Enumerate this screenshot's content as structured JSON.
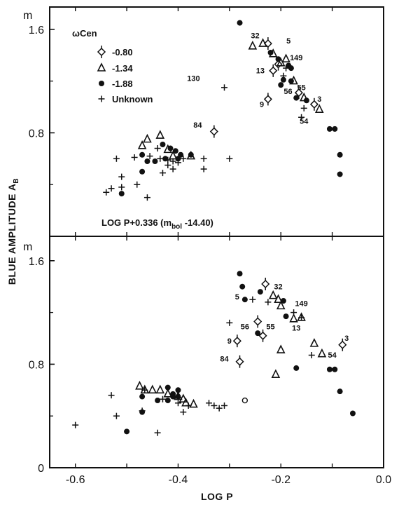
{
  "chart_data": [
    {
      "type": "scatter",
      "panel": "top",
      "x_ticks": [],
      "y_ticks": [
        "1.6",
        "0.8"
      ],
      "y_unit": "m",
      "ylim": [
        0,
        1.95
      ],
      "xlim": [
        -0.65,
        0.0
      ],
      "legend": {
        "title": "ωCen",
        "position": "top-left",
        "items": [
          {
            "label": "-0.80",
            "symbol": "diamond"
          },
          {
            "label": "-1.34",
            "symbol": "triangle"
          },
          {
            "label": "-1.88",
            "symbol": "dot"
          },
          {
            "label": "Unknown",
            "symbol": "plus"
          }
        ]
      },
      "annotation": "LOG P+0.336 (m",
      "annotation_sub": "bol",
      "annotation_tail": " -14.40)",
      "series": [
        {
          "name": "-0.80",
          "points": [
            [
              -0.225,
              1.49
            ],
            [
              -0.205,
              1.33
            ],
            [
              -0.215,
              1.28
            ],
            [
              -0.225,
              1.06
            ],
            [
              -0.165,
              1.11
            ],
            [
              -0.135,
              1.02
            ],
            [
              -0.33,
              0.81
            ]
          ]
        },
        {
          "name": "-1.34",
          "points": [
            [
              -0.255,
              1.47
            ],
            [
              -0.235,
              1.49
            ],
            [
              -0.215,
              1.41
            ],
            [
              -0.19,
              1.37
            ],
            [
              -0.2,
              1.34
            ],
            [
              -0.175,
              1.2
            ],
            [
              -0.155,
              1.07
            ],
            [
              -0.125,
              0.98
            ],
            [
              -0.435,
              0.78
            ],
            [
              -0.46,
              0.75
            ],
            [
              -0.47,
              0.7
            ],
            [
              -0.42,
              0.67
            ],
            [
              -0.41,
              0.62
            ],
            [
              -0.375,
              0.62
            ]
          ]
        },
        {
          "name": "-1.88",
          "points": [
            [
              -0.28,
              1.65
            ],
            [
              -0.22,
              1.42
            ],
            [
              -0.205,
              1.37
            ],
            [
              -0.185,
              1.32
            ],
            [
              -0.195,
              1.21
            ],
            [
              -0.18,
              1.3
            ],
            [
              -0.2,
              1.17
            ],
            [
              -0.18,
              1.2
            ],
            [
              -0.17,
              1.07
            ],
            [
              -0.15,
              1.05
            ],
            [
              -0.105,
              0.83
            ],
            [
              -0.095,
              0.83
            ],
            [
              -0.085,
              0.63
            ],
            [
              -0.085,
              0.48
            ],
            [
              -0.43,
              0.71
            ],
            [
              -0.415,
              0.68
            ],
            [
              -0.405,
              0.66
            ],
            [
              -0.395,
              0.63
            ],
            [
              -0.375,
              0.63
            ],
            [
              -0.46,
              0.58
            ],
            [
              -0.445,
              0.58
            ],
            [
              -0.47,
              0.63
            ],
            [
              -0.425,
              0.6
            ],
            [
              -0.4,
              0.6
            ],
            [
              -0.47,
              0.5
            ],
            [
              -0.51,
              0.33
            ]
          ]
        },
        {
          "name": "Unknown",
          "points": [
            [
              -0.31,
              1.15
            ],
            [
              -0.195,
              1.24
            ],
            [
              -0.19,
              1.3
            ],
            [
              -0.16,
              0.92
            ],
            [
              -0.155,
              0.99
            ],
            [
              -0.44,
              0.68
            ],
            [
              -0.455,
              0.62
            ],
            [
              -0.485,
              0.61
            ],
            [
              -0.435,
              0.6
            ],
            [
              -0.42,
              0.59
            ],
            [
              -0.41,
              0.58
            ],
            [
              -0.4,
              0.57
            ],
            [
              -0.39,
              0.6
            ],
            [
              -0.35,
              0.6
            ],
            [
              -0.35,
              0.52
            ],
            [
              -0.3,
              0.6
            ],
            [
              -0.42,
              0.55
            ],
            [
              -0.41,
              0.52
            ],
            [
              -0.43,
              0.49
            ],
            [
              -0.52,
              0.6
            ],
            [
              -0.51,
              0.46
            ],
            [
              -0.53,
              0.37
            ],
            [
              -0.51,
              0.38
            ],
            [
              -0.48,
              0.4
            ],
            [
              -0.54,
              0.34
            ],
            [
              -0.46,
              0.3
            ]
          ]
        }
      ],
      "labels": [
        {
          "text": "32",
          "x": -0.25,
          "y": 1.53
        },
        {
          "text": "5",
          "x": -0.185,
          "y": 1.49
        },
        {
          "text": "149",
          "x": -0.17,
          "y": 1.36
        },
        {
          "text": "13",
          "x": -0.24,
          "y": 1.26
        },
        {
          "text": "130",
          "x": -0.37,
          "y": 1.2
        },
        {
          "text": "56",
          "x": -0.186,
          "y": 1.1
        },
        {
          "text": "55",
          "x": -0.16,
          "y": 1.13
        },
        {
          "text": "3",
          "x": -0.125,
          "y": 1.04
        },
        {
          "text": "9",
          "x": -0.237,
          "y": 1.0
        },
        {
          "text": "84",
          "x": -0.362,
          "y": 0.84
        },
        {
          "text": "54",
          "x": -0.155,
          "y": 0.87
        }
      ]
    },
    {
      "type": "scatter",
      "panel": "bottom",
      "x_ticks": [
        "-0.6",
        "-0.4",
        "-0.2",
        "0.0"
      ],
      "y_ticks": [
        "1.6",
        "0.8",
        "0"
      ],
      "y_unit": "m",
      "ylim": [
        0,
        1.95
      ],
      "xlim": [
        -0.65,
        0.0
      ],
      "series": [
        {
          "name": "-0.80",
          "points": [
            [
              -0.23,
              1.42
            ],
            [
              -0.245,
              1.13
            ],
            [
              -0.235,
              1.02
            ],
            [
              -0.285,
              0.98
            ],
            [
              -0.08,
              0.95
            ],
            [
              -0.28,
              0.82
            ]
          ]
        },
        {
          "name": "-1.34",
          "points": [
            [
              -0.215,
              1.33
            ],
            [
              -0.205,
              1.3
            ],
            [
              -0.175,
              1.15
            ],
            [
              -0.16,
              1.16
            ],
            [
              -0.2,
              1.25
            ],
            [
              -0.12,
              0.88
            ],
            [
              -0.135,
              0.96
            ],
            [
              -0.2,
              0.91
            ],
            [
              -0.21,
              0.72
            ],
            [
              -0.475,
              0.63
            ],
            [
              -0.465,
              0.6
            ],
            [
              -0.45,
              0.6
            ],
            [
              -0.435,
              0.6
            ],
            [
              -0.42,
              0.57
            ],
            [
              -0.4,
              0.55
            ],
            [
              -0.39,
              0.53
            ],
            [
              -0.385,
              0.5
            ],
            [
              -0.37,
              0.49
            ]
          ]
        },
        {
          "name": "-1.88",
          "points": [
            [
              -0.28,
              1.5
            ],
            [
              -0.275,
              1.4
            ],
            [
              -0.27,
              1.3
            ],
            [
              -0.24,
              1.36
            ],
            [
              -0.195,
              1.29
            ],
            [
              -0.19,
              1.17
            ],
            [
              -0.245,
              1.04
            ],
            [
              -0.17,
              0.77
            ],
            [
              -0.105,
              0.76
            ],
            [
              -0.095,
              0.76
            ],
            [
              -0.085,
              0.59
            ],
            [
              -0.06,
              0.42
            ],
            [
              -0.42,
              0.62
            ],
            [
              -0.41,
              0.57
            ],
            [
              -0.4,
              0.55
            ],
            [
              -0.4,
              0.6
            ],
            [
              -0.44,
              0.52
            ],
            [
              -0.42,
              0.52
            ],
            [
              -0.41,
              0.55
            ],
            [
              -0.47,
              0.55
            ],
            [
              -0.47,
              0.43
            ],
            [
              -0.5,
              0.28
            ]
          ]
        },
        {
          "name": "Unknown",
          "points": [
            [
              -0.255,
              1.3
            ],
            [
              -0.225,
              1.28
            ],
            [
              -0.175,
              1.2
            ],
            [
              -0.16,
              1.16
            ],
            [
              -0.3,
              1.12
            ],
            [
              -0.14,
              0.87
            ],
            [
              -0.465,
              0.6
            ],
            [
              -0.43,
              0.53
            ],
            [
              -0.4,
              0.5
            ],
            [
              -0.38,
              0.48
            ],
            [
              -0.34,
              0.5
            ],
            [
              -0.33,
              0.48
            ],
            [
              -0.32,
              0.46
            ],
            [
              -0.31,
              0.48
            ],
            [
              -0.39,
              0.43
            ],
            [
              -0.47,
              0.44
            ],
            [
              -0.53,
              0.56
            ],
            [
              -0.52,
              0.4
            ],
            [
              -0.6,
              0.33
            ],
            [
              -0.44,
              0.27
            ]
          ]
        },
        {
          "name": "open",
          "points": [
            [
              -0.27,
              0.52
            ]
          ]
        }
      ],
      "labels": [
        {
          "text": "32",
          "x": -0.205,
          "y": 1.38
        },
        {
          "text": "149",
          "x": -0.16,
          "y": 1.25
        },
        {
          "text": "5",
          "x": -0.285,
          "y": 1.3
        },
        {
          "text": "56",
          "x": -0.27,
          "y": 1.07
        },
        {
          "text": "55",
          "x": -0.22,
          "y": 1.07
        },
        {
          "text": "13",
          "x": -0.17,
          "y": 1.06
        },
        {
          "text": "9",
          "x": -0.3,
          "y": 0.96
        },
        {
          "text": "3",
          "x": -0.072,
          "y": 0.98
        },
        {
          "text": "84",
          "x": -0.31,
          "y": 0.82
        },
        {
          "text": "54",
          "x": -0.1,
          "y": 0.85
        }
      ]
    }
  ],
  "axes": {
    "ylabel": "BLUE AMPLITUDE A",
    "ylabel_sub": "B",
    "xlabel": "LOG P"
  }
}
